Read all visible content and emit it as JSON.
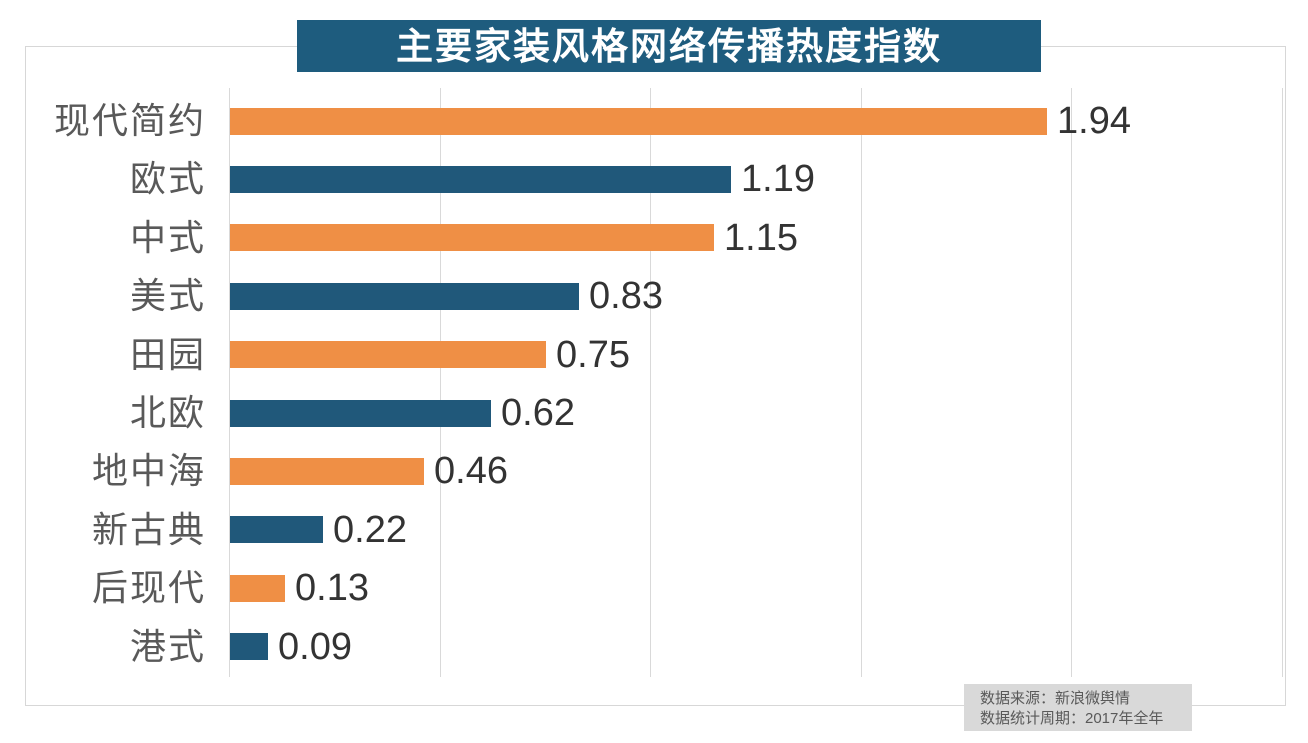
{
  "title": "主要家装风格网络传播热度指数",
  "chart_data": {
    "type": "bar",
    "orientation": "horizontal",
    "title": "主要家装风格网络传播热度指数",
    "categories": [
      "现代简约",
      "欧式",
      "中式",
      "美式",
      "田园",
      "北欧",
      "地中海",
      "新古典",
      "后现代",
      "港式"
    ],
    "values": [
      1.94,
      1.19,
      1.15,
      0.83,
      0.75,
      0.62,
      0.46,
      0.22,
      0.13,
      0.09
    ],
    "value_labels": [
      "1.94",
      "1.19",
      "1.15",
      "0.83",
      "0.75",
      "0.62",
      "0.46",
      "0.22",
      "0.13",
      "0.09"
    ],
    "xlabel": "",
    "ylabel": "",
    "xlim": [
      0,
      2.5
    ],
    "grid_step": 0.5,
    "grid": true,
    "legend": false,
    "bar_color_pattern": "alternating",
    "bar_colors": [
      "#EF8F45",
      "#20587A"
    ]
  },
  "footer": {
    "source_line": "数据来源：新浪微舆情",
    "period_line": "数据统计周期：2017年全年"
  },
  "colors": {
    "orange_bar": "#EF8F45",
    "blue_bar": "#20587A",
    "title_bg": "#1E5C7E",
    "title_text": "#FFFFFF",
    "gridline": "#D9D9D9",
    "frame_border": "#D7D7D7",
    "category_label": "#595959",
    "value_label": "#333333",
    "footer_bg": "#D9D9D9",
    "footer_text": "#595959"
  }
}
